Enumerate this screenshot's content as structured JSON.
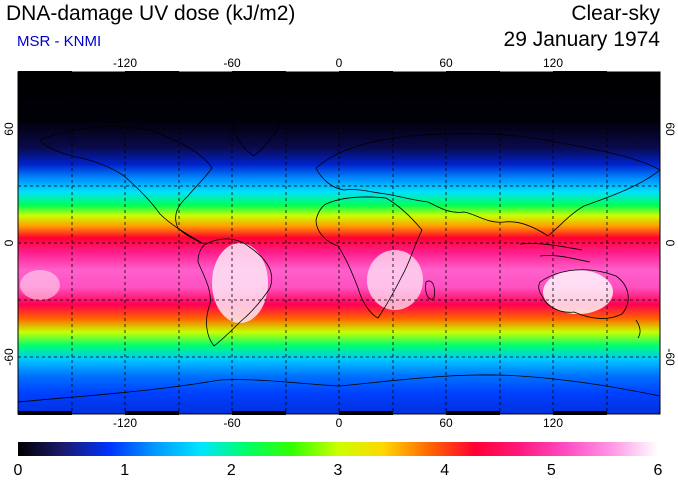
{
  "header": {
    "title": "DNA-damage UV dose (kJ/m2)",
    "subtitle": "MSR - KNMI",
    "condition": "Clear-sky",
    "date": "29 January 1974"
  },
  "map": {
    "lon_ticks": [
      "-120",
      "-60",
      "0",
      "60",
      "120"
    ],
    "lat_ticks": [
      "60",
      "0",
      "-60"
    ],
    "lon_values": [
      -120,
      -60,
      0,
      60,
      120
    ],
    "lat_values": [
      60,
      0,
      -60
    ],
    "lon_range": [
      -180,
      180
    ],
    "lat_range": [
      -90,
      90
    ]
  },
  "colorbar": {
    "labels": [
      "0",
      "1",
      "2",
      "3",
      "4",
      "5",
      "6"
    ],
    "min": 0,
    "max": 6,
    "colors": [
      "#000000",
      "#1a1a6e",
      "#0033ff",
      "#0099ff",
      "#00e5ff",
      "#00ff66",
      "#33ff00",
      "#ccff00",
      "#ffd700",
      "#ff6600",
      "#ff0033",
      "#ff1a80",
      "#ff4dc4",
      "#ff99e6",
      "#ffffff"
    ]
  },
  "colors": {
    "subtitle": "#0000cc",
    "frame": "#000000",
    "grid": "#000000"
  }
}
